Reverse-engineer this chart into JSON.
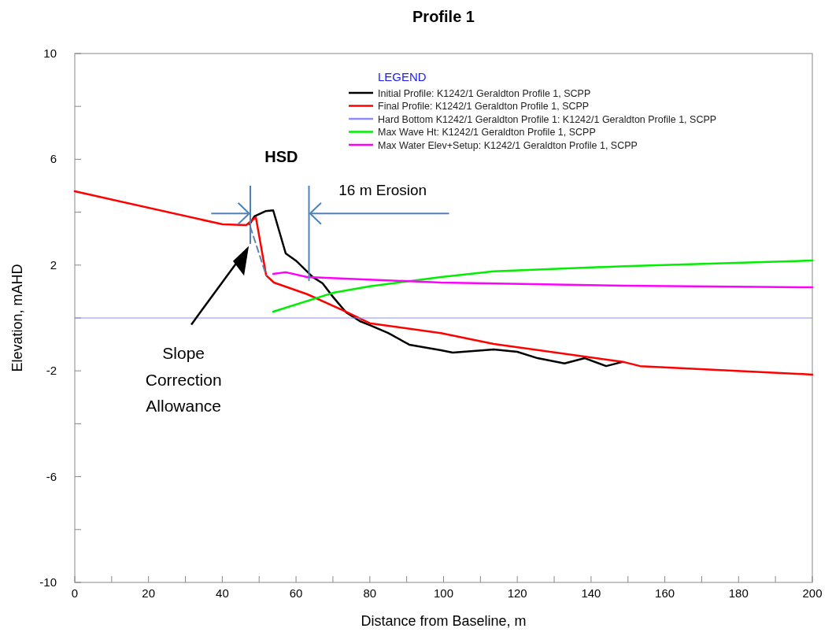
{
  "chart_data": {
    "type": "line",
    "title": "Profile 1",
    "xlabel": "Distance from Baseline, m",
    "ylabel": "Elevation, mAHD",
    "legend_title": "LEGEND",
    "annotations": [
      "HSD",
      "16 m Erosion",
      "Slope Correction Allowance"
    ],
    "xlim": [
      0,
      200
    ],
    "ylim": [
      -10,
      10
    ],
    "xticks": [
      0,
      {
        "value": 10,
        "label": null
      },
      20,
      {
        "value": 30,
        "label": null
      },
      40,
      {
        "value": 50,
        "label": null
      },
      60,
      {
        "value": 70,
        "label": null
      },
      80,
      {
        "value": 90,
        "label": null
      },
      100,
      {
        "value": 110,
        "label": null
      },
      120,
      {
        "value": 130,
        "label": null
      },
      140,
      {
        "value": 150,
        "label": null
      },
      160,
      {
        "value": 170,
        "label": null
      },
      180,
      {
        "value": 190,
        "label": null
      },
      200
    ],
    "yticks": [
      -10,
      {
        "value": -8,
        "label": null
      },
      -6,
      {
        "value": -4,
        "label": null
      },
      -2,
      {
        "value": 0,
        "label": null
      },
      2,
      {
        "value": 4,
        "label": null
      },
      6,
      {
        "value": 8,
        "label": null
      },
      10
    ],
    "grid": false,
    "legend": "top right",
    "marker": "none",
    "line_style": "solid",
    "series": [
      {
        "name": "Initial Profile: K1242/1 Geraldton Profile 1, SCPP",
        "color": "#000000",
        "x": [
          47.4,
          48.7,
          51.7,
          53.8,
          57.2,
          60.2,
          64.5,
          67.2,
          70,
          73.6,
          77.3,
          80,
          85,
          90.7,
          99.3,
          102.5,
          113.6,
          120,
          125.5,
          132.8,
          138.3,
          144.1,
          148.3
        ],
        "values": [
          3.54,
          3.84,
          4.04,
          4.07,
          2.44,
          2.14,
          1.55,
          1.31,
          0.8,
          0.21,
          -0.12,
          -0.27,
          -0.57,
          -1.01,
          -1.22,
          -1.31,
          -1.19,
          -1.28,
          -1.52,
          -1.72,
          -1.52,
          -1.82,
          -1.67
        ]
      },
      {
        "name": "Final Profile: K1242/1 Geraldton Profile 1, SCPP",
        "color": "#ff0000",
        "x": [
          0,
          40.1,
          46.5,
          49.1,
          51.9,
          54,
          63,
          73,
          80,
          99.3,
          113.6,
          149,
          153.3,
          200
        ],
        "values": [
          4.79,
          3.54,
          3.51,
          3.81,
          1.61,
          1.34,
          0.9,
          0.27,
          -0.2,
          -0.57,
          -0.98,
          -1.67,
          -1.82,
          -2.14
        ]
      },
      {
        "name": "Hard Bottom K1242/1 Geraldton Profile 1: K1242/1 Geraldton Profile 1, SCPP",
        "color": "#8c8cff",
        "x": [
          0,
          200
        ],
        "values": [
          0,
          0
        ]
      },
      {
        "name": "Max Wave Ht: K1242/1 Geraldton Profile 1, SCPP",
        "color": "#00ee00",
        "x": [
          53.8,
          70,
          80,
          99.3,
          113.6,
          149,
          200
        ],
        "values": [
          0.24,
          0.95,
          1.2,
          1.55,
          1.76,
          1.96,
          2.17
        ]
      },
      {
        "name": "Max Water Elev+Setup: K1242/1 Geraldton Profile 1, SCPP",
        "color": "#ff00ff",
        "x": [
          53.8,
          57.2,
          63,
          99.3,
          149,
          200
        ],
        "values": [
          1.67,
          1.73,
          1.55,
          1.34,
          1.22,
          1.16
        ]
      },
      {
        "color": "#6a80a8",
        "line_style": "dashed",
        "x": [
          47.6,
          51.9
        ],
        "values": [
          3.45,
          1.61
        ]
      }
    ]
  }
}
